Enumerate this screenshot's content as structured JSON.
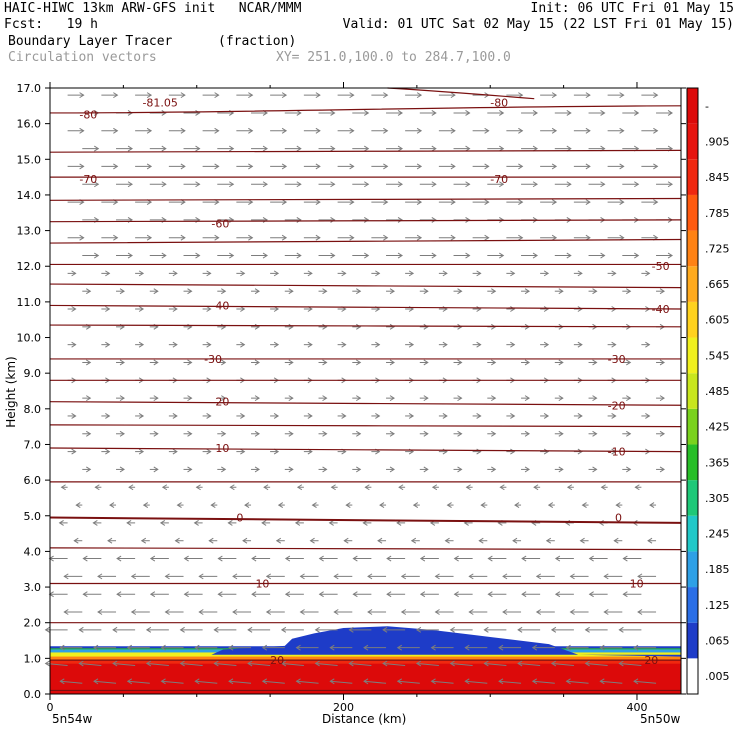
{
  "header": {
    "line1_left": "HAIC-HIWC 13km ARW-GFS init   NCAR/MMM",
    "line1_right": "Init: 06 UTC Fri 01 May 15",
    "line2_left": "Fcst:   19 h",
    "line2_right": "Valid: 01 UTC Sat 02 May 15 (22 LST Fri 01 May 15)",
    "field_name": "Boundary Layer Tracer",
    "field_units": "(fraction)",
    "overlay_name": "Circulation vectors",
    "cross_section": "XY= 251.0,100.0 to 284.7,100.0"
  },
  "axes": {
    "ylabel": "Height (km)",
    "xlabel": "Distance (km)",
    "left_corner": "5n54w",
    "right_corner": "5n50w"
  },
  "colors": {
    "contour": "#7a1010",
    "vector": "#7d7d7d",
    "colorbar": [
      "#ffffff",
      "#1e3cc8",
      "#2a6ee6",
      "#2ea0e6",
      "#20c8c8",
      "#1ec878",
      "#28be28",
      "#7ad21e",
      "#c8e61e",
      "#f0f01e",
      "#ffd21e",
      "#ffaa1e",
      "#ff8214",
      "#ff5a0f",
      "#f0280f",
      "#e6140f",
      "#dc0a0a"
    ]
  },
  "chart_data": {
    "type": "contour",
    "title": "Boundary Layer Tracer",
    "xlabel": "Distance (km)",
    "ylabel": "Height (km)",
    "xlim": [
      0,
      430
    ],
    "ylim": [
      0,
      17
    ],
    "x_ticks": [
      0,
      200,
      400
    ],
    "y_ticks": [
      0.0,
      1.0,
      2.0,
      3.0,
      4.0,
      5.0,
      6.0,
      7.0,
      8.0,
      9.0,
      10.0,
      11.0,
      12.0,
      13.0,
      14.0,
      15.0,
      16.0,
      17.0
    ],
    "colorbar_labels": [
      ".005",
      ".065",
      ".125",
      ".185",
      ".245",
      ".305",
      ".365",
      ".425",
      ".485",
      ".545",
      ".605",
      ".665",
      ".725",
      ".785",
      ".845",
      ".905",
      "-"
    ],
    "contour_labels": [
      {
        "text": "-81.05",
        "x": 63,
        "y": 16.6
      },
      {
        "text": "-80",
        "x": 20,
        "y": 16.25
      },
      {
        "text": "-80",
        "x": 300,
        "y": 16.6
      },
      {
        "text": "-70",
        "x": 20,
        "y": 14.45
      },
      {
        "text": "-70",
        "x": 300,
        "y": 14.45
      },
      {
        "text": "-60",
        "x": 110,
        "y": 13.2
      },
      {
        "text": "-50",
        "x": 410,
        "y": 12.0
      },
      {
        "text": "-40",
        "x": 110,
        "y": 10.9
      },
      {
        "text": "-40",
        "x": 410,
        "y": 10.8
      },
      {
        "text": "-30",
        "x": 105,
        "y": 9.4
      },
      {
        "text": "-30",
        "x": 380,
        "y": 9.4
      },
      {
        "text": "-20",
        "x": 110,
        "y": 8.2
      },
      {
        "text": "-20",
        "x": 380,
        "y": 8.1
      },
      {
        "text": "-10",
        "x": 110,
        "y": 6.9
      },
      {
        "text": "-10",
        "x": 380,
        "y": 6.8
      },
      {
        "text": "0",
        "x": 127,
        "y": 4.95
      },
      {
        "text": "0",
        "x": 385,
        "y": 4.95
      },
      {
        "text": "10",
        "x": 140,
        "y": 3.1
      },
      {
        "text": "10",
        "x": 395,
        "y": 3.1
      },
      {
        "text": "20",
        "x": 150,
        "y": 0.95
      },
      {
        "text": "20",
        "x": 405,
        "y": 0.95
      }
    ],
    "contour_levels_km": [
      {
        "level": "-80",
        "heights": [
          16.3,
          16.5
        ]
      },
      {
        "level": "-75",
        "heights": [
          15.2,
          15.25
        ]
      },
      {
        "level": "-70",
        "heights": [
          14.5,
          14.5
        ]
      },
      {
        "level": "-65",
        "heights": [
          13.85,
          13.9
        ]
      },
      {
        "level": "-60",
        "heights": [
          13.25,
          13.3
        ]
      },
      {
        "level": "-55",
        "heights": [
          12.65,
          12.75
        ]
      },
      {
        "level": "-50",
        "heights": [
          12.05,
          12.05
        ]
      },
      {
        "level": "-45",
        "heights": [
          11.5,
          11.4
        ]
      },
      {
        "level": "-40",
        "heights": [
          10.9,
          10.8
        ]
      },
      {
        "level": "-35",
        "heights": [
          10.35,
          10.3
        ]
      },
      {
        "level": "-30",
        "heights": [
          9.4,
          9.4
        ]
      },
      {
        "level": "-25",
        "heights": [
          8.8,
          8.8
        ]
      },
      {
        "level": "-20",
        "heights": [
          8.2,
          8.1
        ]
      },
      {
        "level": "-15",
        "heights": [
          7.55,
          7.5
        ]
      },
      {
        "level": "-10",
        "heights": [
          6.9,
          6.8
        ]
      },
      {
        "level": "-5",
        "heights": [
          5.95,
          5.95
        ]
      },
      {
        "level": "0",
        "heights": [
          4.95,
          4.8
        ]
      },
      {
        "level": "5",
        "heights": [
          4.1,
          4.05
        ]
      },
      {
        "level": "10",
        "heights": [
          3.1,
          3.1
        ]
      },
      {
        "level": "15",
        "heights": [
          2.0,
          2.0
        ]
      },
      {
        "level": "20",
        "heights": [
          0.95,
          0.95
        ]
      },
      {
        "level": "25",
        "heights": [
          0.1,
          0.1
        ]
      }
    ]
  }
}
